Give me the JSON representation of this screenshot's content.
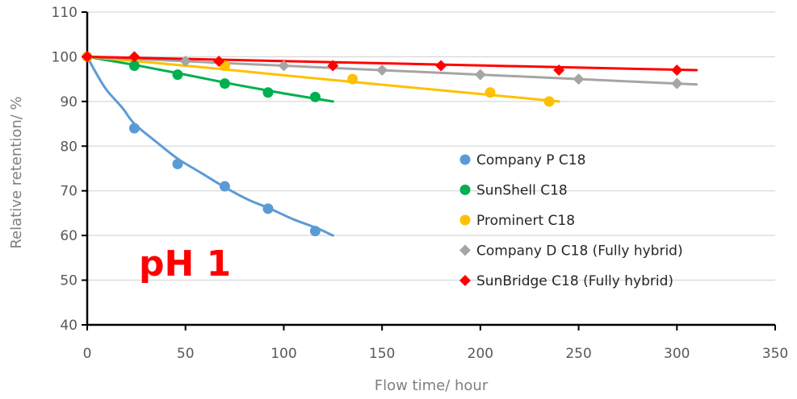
{
  "chart_data": {
    "type": "scatter",
    "xlabel": "Flow time/ hour",
    "ylabel": "Relative retention/ %",
    "xlim": [
      0,
      350
    ],
    "ylim": [
      40,
      110
    ],
    "xticks": [
      "0",
      "50",
      "100",
      "150",
      "200",
      "250",
      "300",
      "350"
    ],
    "yticks": [
      "40",
      "50",
      "60",
      "70",
      "80",
      "90",
      "100",
      "110"
    ],
    "grid": "horizontal",
    "legend_position": "right-center",
    "annotation": "pH 1",
    "series": [
      {
        "name": "Company P C18",
        "color": "#5b9bd5",
        "marker": "circle",
        "points": [
          [
            0,
            100
          ],
          [
            24,
            84
          ],
          [
            46,
            76
          ],
          [
            70,
            71
          ],
          [
            92,
            66
          ],
          [
            116,
            61
          ]
        ],
        "trend": [
          [
            0,
            100
          ],
          [
            5,
            96
          ],
          [
            10,
            92.5
          ],
          [
            18,
            88.5
          ],
          [
            24,
            85
          ],
          [
            35,
            81
          ],
          [
            46,
            77.2
          ],
          [
            58,
            74
          ],
          [
            70,
            70.8
          ],
          [
            82,
            68
          ],
          [
            92,
            66.2
          ],
          [
            105,
            63.6
          ],
          [
            116,
            61.8
          ],
          [
            125,
            60
          ]
        ]
      },
      {
        "name": "SunShell C18",
        "color": "#00b050",
        "marker": "circle",
        "points": [
          [
            0,
            100
          ],
          [
            24,
            98
          ],
          [
            46,
            96
          ],
          [
            70,
            94
          ],
          [
            92,
            92
          ],
          [
            116,
            91
          ]
        ],
        "trend": [
          [
            0,
            100
          ],
          [
            25,
            98.1
          ],
          [
            50,
            96
          ],
          [
            75,
            93.8
          ],
          [
            100,
            91.8
          ],
          [
            125,
            90
          ]
        ]
      },
      {
        "name": "Prominert C18",
        "color": "#ffc000",
        "marker": "circle",
        "points": [
          [
            0,
            100
          ],
          [
            70,
            98
          ],
          [
            135,
            95
          ],
          [
            205,
            92
          ],
          [
            235,
            90
          ]
        ],
        "trend": [
          [
            0,
            100
          ],
          [
            60,
            97.6
          ],
          [
            120,
            95
          ],
          [
            180,
            92.5
          ],
          [
            240,
            90
          ]
        ]
      },
      {
        "name": "Company D C18  (Fully hybrid)",
        "color": "#a5a5a5",
        "marker": "diamond",
        "points": [
          [
            0,
            100
          ],
          [
            50,
            99
          ],
          [
            100,
            98
          ],
          [
            150,
            97
          ],
          [
            200,
            96
          ],
          [
            250,
            95
          ],
          [
            300,
            94
          ]
        ],
        "trend": [
          [
            0,
            100
          ],
          [
            310,
            93.8
          ]
        ]
      },
      {
        "name": "SunBridge C18  (Fully hybrid)",
        "color": "#ff0000",
        "marker": "diamond",
        "points": [
          [
            0,
            100
          ],
          [
            24,
            100
          ],
          [
            67,
            99
          ],
          [
            125,
            98
          ],
          [
            180,
            98
          ],
          [
            240,
            97
          ],
          [
            300,
            97
          ]
        ],
        "trend": [
          [
            0,
            100
          ],
          [
            310,
            97
          ]
        ]
      }
    ]
  }
}
